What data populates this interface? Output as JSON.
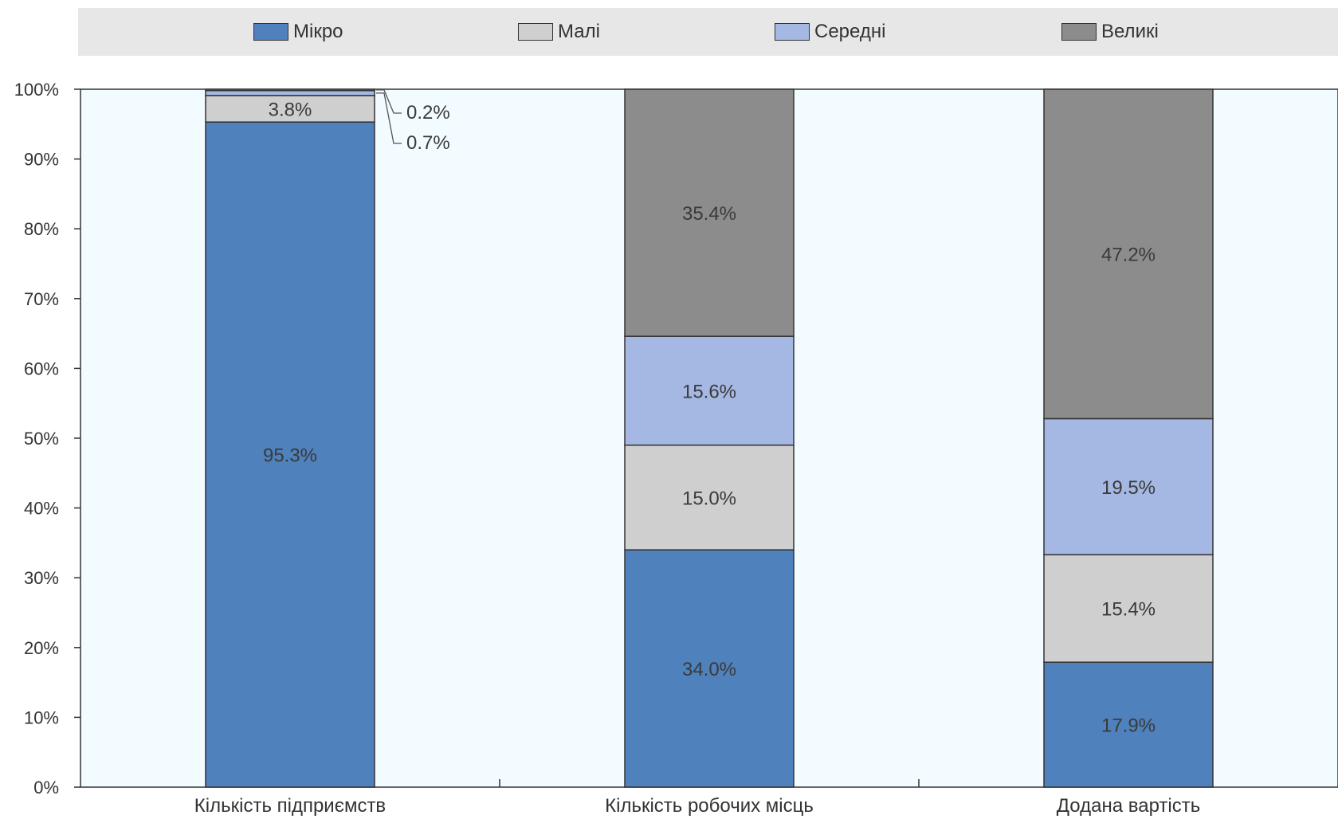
{
  "chart_data": {
    "type": "bar",
    "stacked": true,
    "categories": [
      "Кількість підприємств",
      "Кількість робочих місць",
      "Додана вартість"
    ],
    "series": [
      {
        "name": "Мікро",
        "color": "#4f81bd",
        "values": [
          95.3,
          34.0,
          17.9
        ],
        "labels": [
          "95.3%",
          "34.0%",
          "17.9%"
        ]
      },
      {
        "name": "Малі",
        "color": "#cfcfcf",
        "values": [
          3.8,
          15.0,
          15.4
        ],
        "labels": [
          "3.8%",
          "15.0%",
          "15.4%"
        ]
      },
      {
        "name": "Середні",
        "color": "#a5b8e3",
        "values": [
          0.7,
          15.6,
          19.5
        ],
        "labels": [
          "0.7%",
          "15.6%",
          "19.5%"
        ]
      },
      {
        "name": "Великі",
        "color": "#8c8c8c",
        "values": [
          0.2,
          35.4,
          47.2
        ],
        "labels": [
          "0.2%",
          "35.4%",
          "47.2%"
        ]
      }
    ],
    "ylim": [
      0,
      100
    ],
    "yticks": [
      "0%",
      "10%",
      "20%",
      "30%",
      "40%",
      "50%",
      "60%",
      "70%",
      "80%",
      "90%",
      "100%"
    ],
    "legend_position": "top",
    "plot_background": "#f2fbff",
    "grid": false
  }
}
